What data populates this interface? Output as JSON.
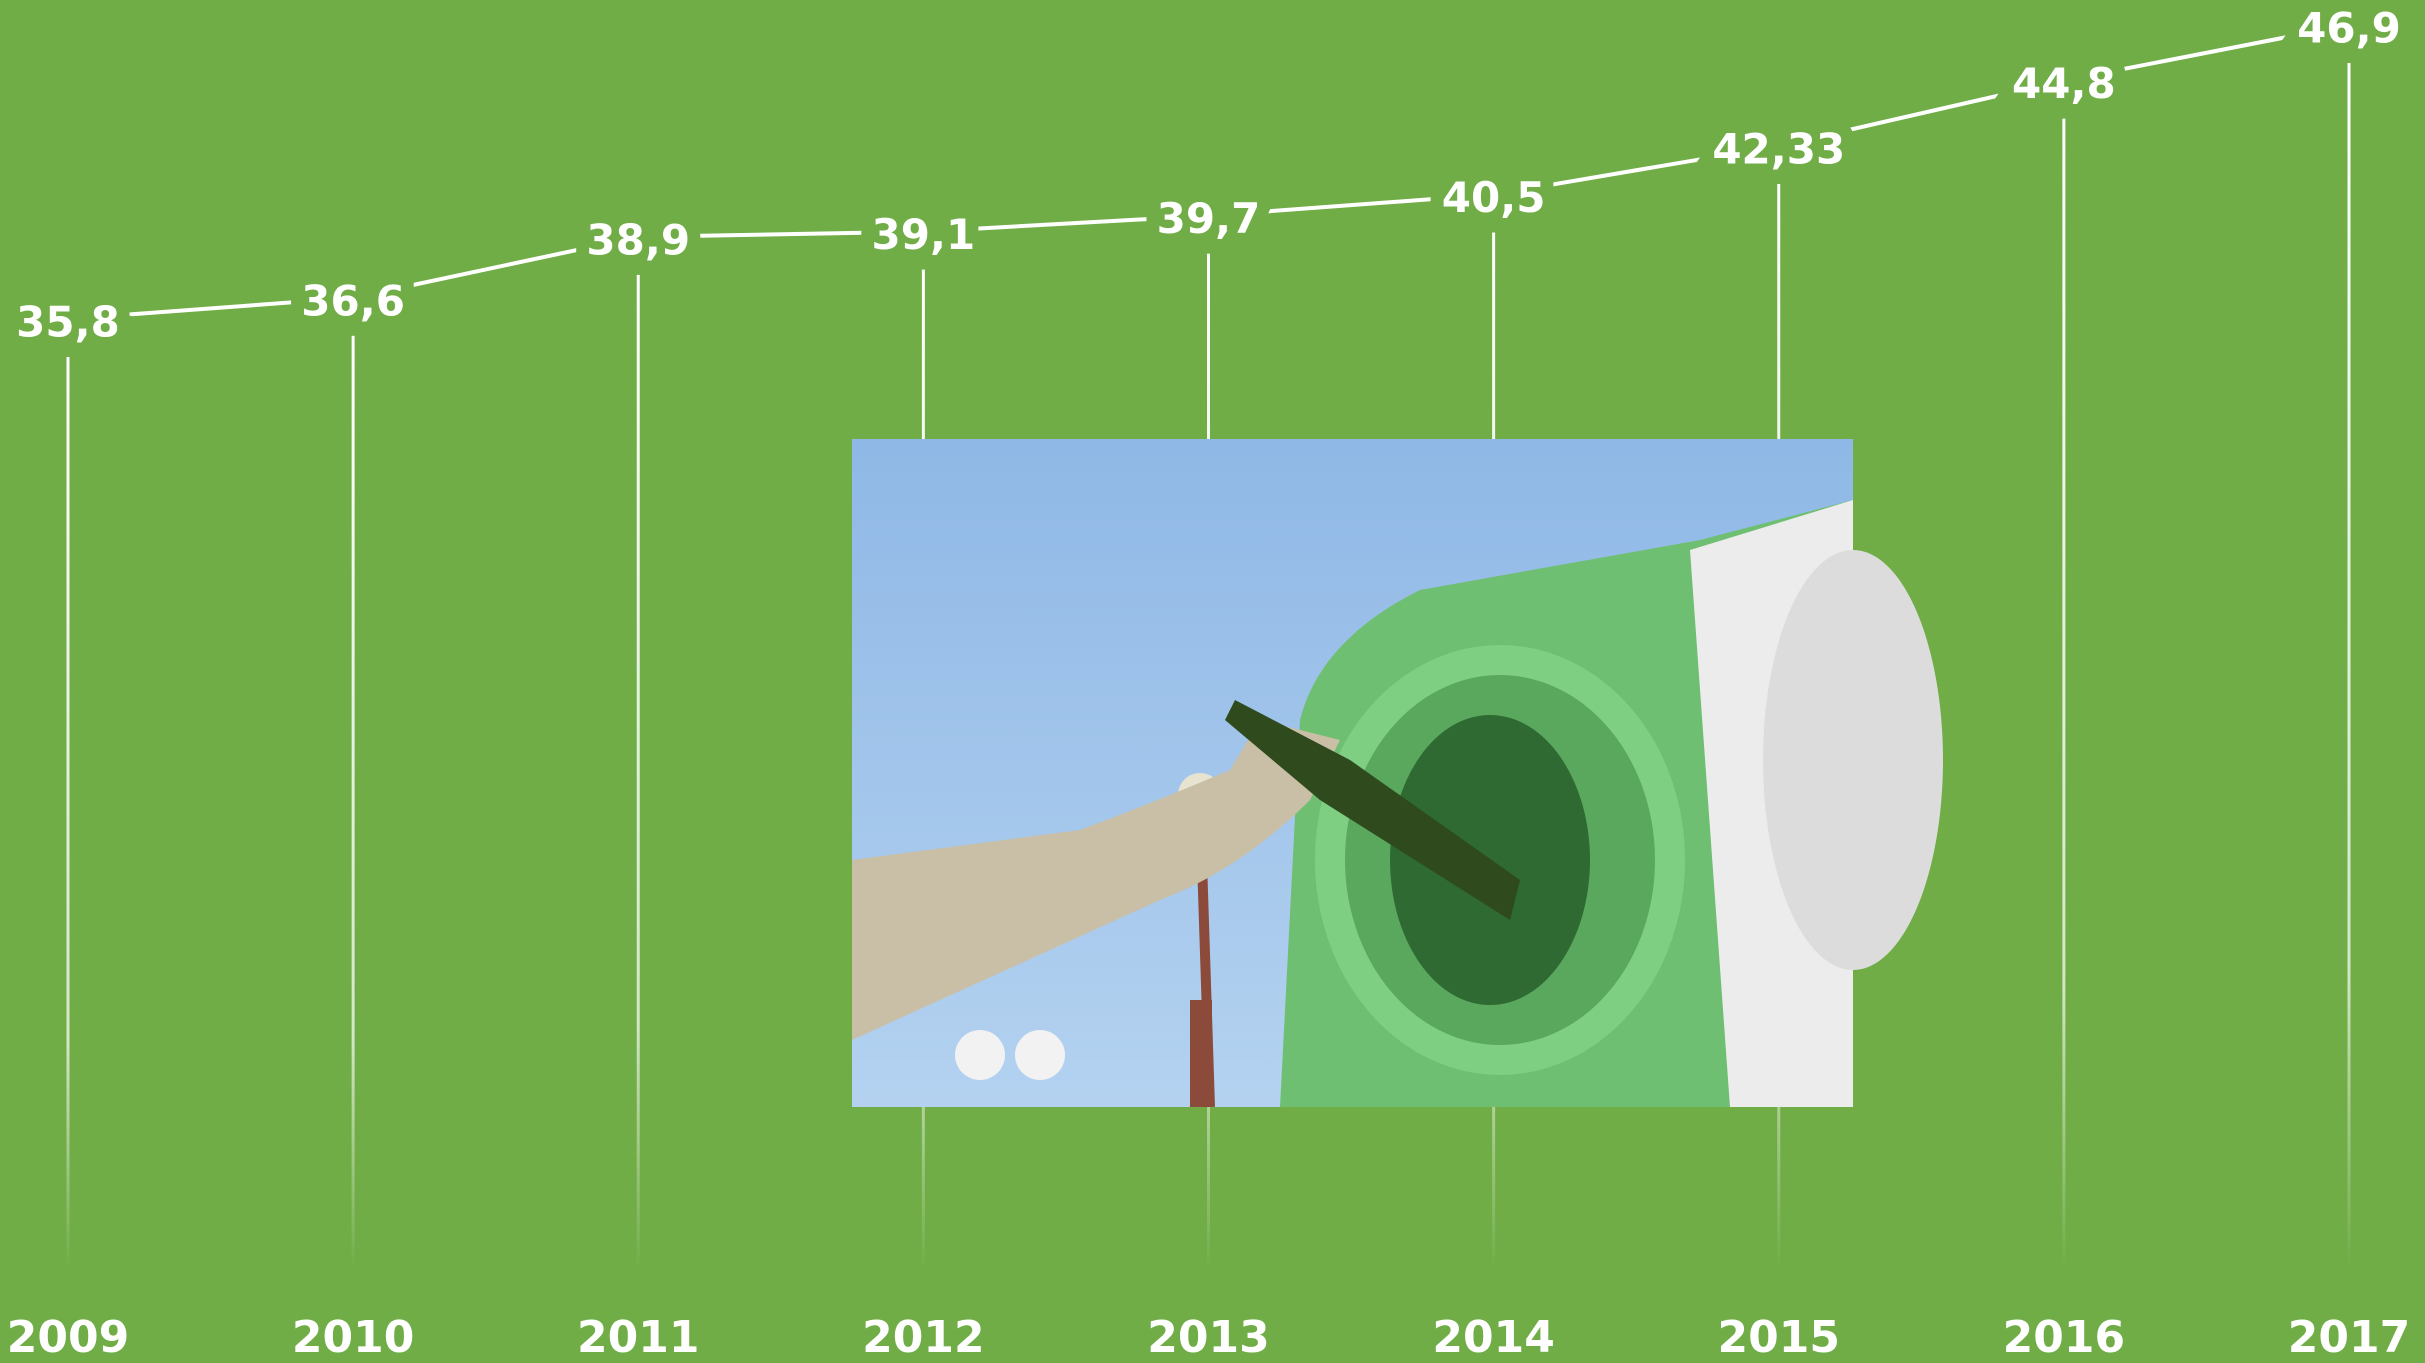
{
  "chart_data": {
    "type": "line",
    "categories": [
      "2009",
      "2010",
      "2011",
      "2012",
      "2013",
      "2014",
      "2015",
      "2016",
      "2017"
    ],
    "values": [
      35.8,
      36.6,
      38.9,
      39.1,
      39.7,
      40.5,
      42.33,
      44.8,
      46.9
    ],
    "value_labels": [
      "35,8",
      "36,6",
      "38,9",
      "39,1",
      "39,7",
      "40,5",
      "42,33",
      "44,8",
      "46,9"
    ],
    "color": "#ffffff",
    "background": "#70ad47"
  }
}
